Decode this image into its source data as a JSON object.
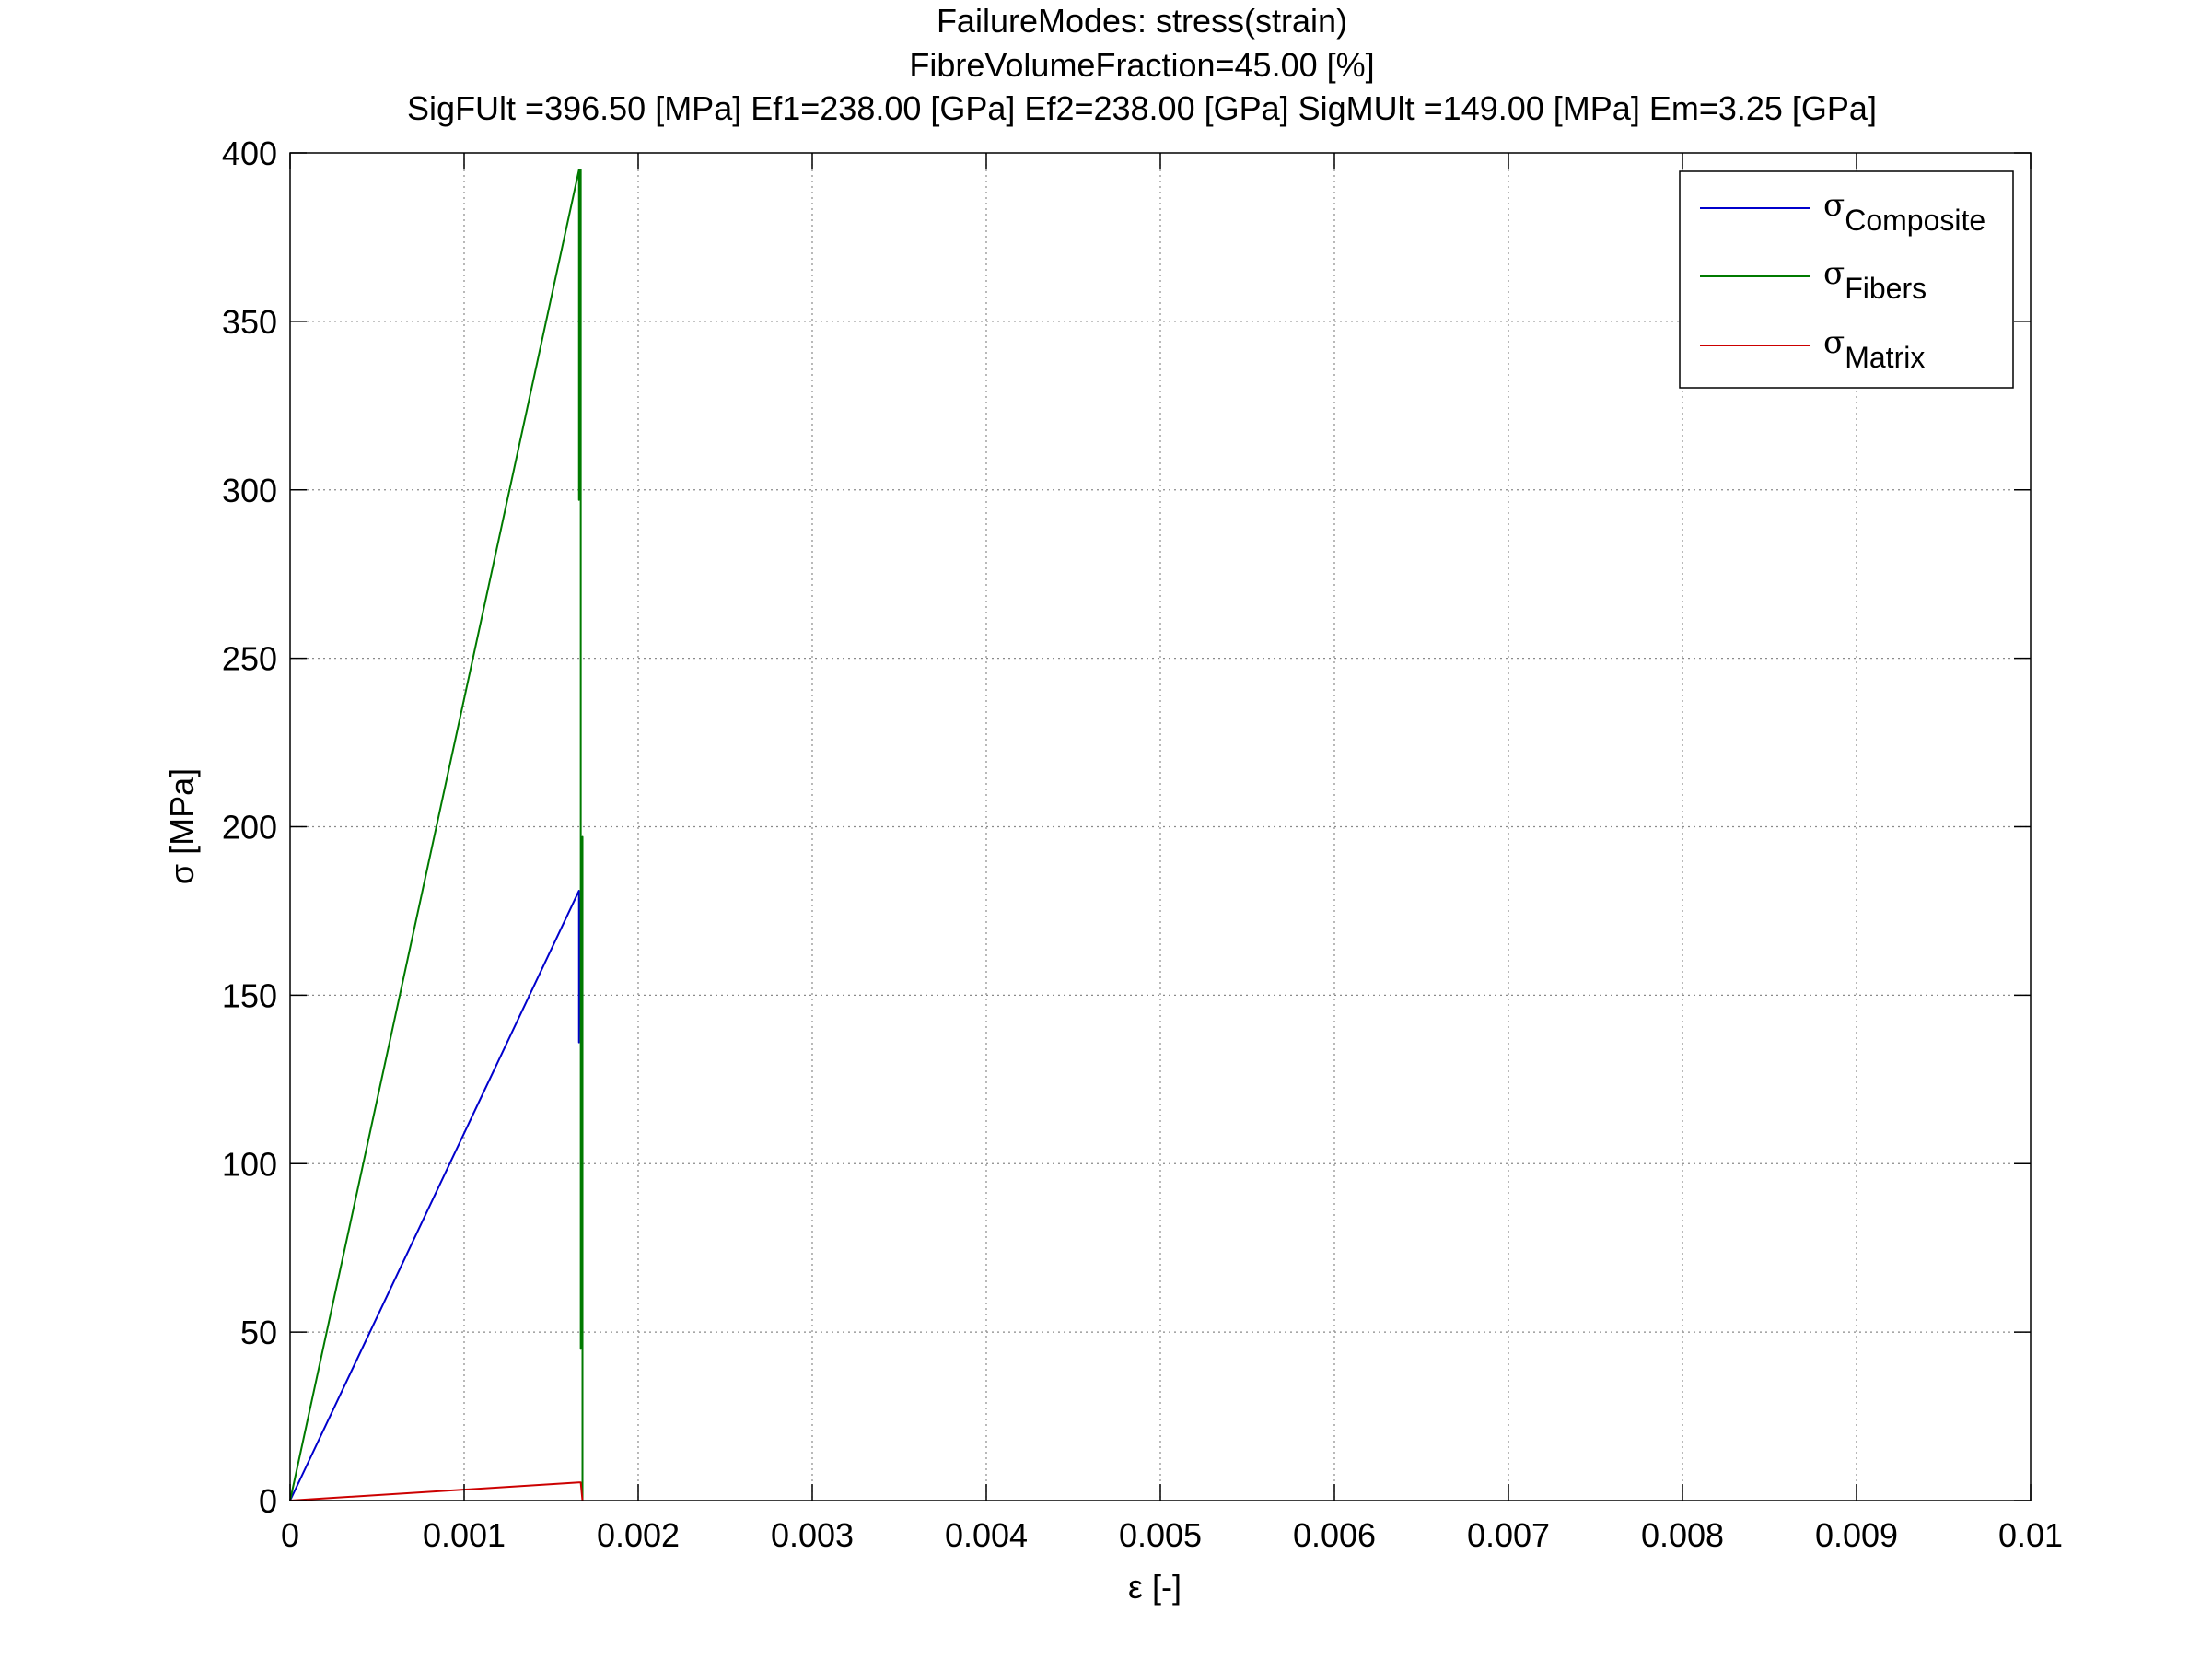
{
  "chart_data": {
    "type": "line",
    "title": [
      "FailureModes: stress(strain)",
      "FibreVolumeFraction=45.00 [%]",
      "SigFUlt =396.50 [MPa] Ef1=238.00 [GPa] Ef2=238.00 [GPa]  SigMUlt =149.00 [MPa]  Em=3.25 [GPa]"
    ],
    "xlabel": "ε [-]",
    "ylabel": "σ [MPa]",
    "xlim": [
      0,
      0.01
    ],
    "ylim": [
      0,
      400
    ],
    "xticks": [
      0,
      0.001,
      0.002,
      0.003,
      0.004,
      0.005,
      0.006,
      0.007,
      0.008,
      0.009,
      0.01
    ],
    "xtick_labels": [
      "0",
      "0.001",
      "0.002",
      "0.003",
      "0.004",
      "0.005",
      "0.006",
      "0.007",
      "0.008",
      "0.009",
      "0.01"
    ],
    "yticks": [
      0,
      50,
      100,
      150,
      200,
      250,
      300,
      350,
      400
    ],
    "ytick_labels": [
      "0",
      "50",
      "100",
      "150",
      "200",
      "250",
      "300",
      "350",
      "400"
    ],
    "grid": true,
    "legend_position": "top-right",
    "series": [
      {
        "name_symbol": "σ",
        "name_sub": "Composite",
        "color": "#0000cc",
        "points": [
          [
            0,
            0
          ],
          [
            0.00166,
            181
          ],
          [
            0.00166,
            136
          ],
          [
            0.00167,
            179
          ]
        ]
      },
      {
        "name_symbol": "σ",
        "name_sub": "Fibers",
        "color": "#007a00",
        "points": [
          [
            0,
            0
          ],
          [
            0.00166,
            395
          ],
          [
            0.00166,
            297
          ],
          [
            0.00167,
            395
          ],
          [
            0.00167,
            45
          ],
          [
            0.00168,
            197
          ],
          [
            0.00168,
            0
          ]
        ]
      },
      {
        "name_symbol": "σ",
        "name_sub": "Matrix",
        "color": "#cc0000",
        "points": [
          [
            0,
            0
          ],
          [
            0.00166,
            5.4
          ],
          [
            0.00167,
            5.4
          ],
          [
            0.00168,
            0
          ]
        ]
      }
    ]
  }
}
